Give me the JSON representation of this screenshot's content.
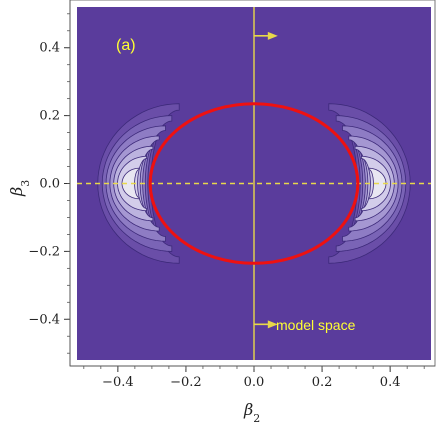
{
  "chart_data": {
    "type": "contour",
    "panel_label": "(a)",
    "annotation": "model space",
    "xlabel": "β2",
    "ylabel": "β3",
    "xlim": [
      -0.52,
      0.52
    ],
    "ylim": [
      -0.52,
      0.52
    ],
    "x_ticks": [
      -0.4,
      -0.2,
      0.0,
      0.2,
      0.4
    ],
    "y_ticks": [
      -0.4,
      -0.2,
      0.0,
      0.2,
      0.4
    ],
    "x_tick_labels": [
      "−0.4",
      "−0.2",
      "0.0",
      "0.2",
      "0.4"
    ],
    "y_tick_labels": [
      "−0.4",
      "−0.2",
      "0.0",
      "0.2",
      "0.4"
    ],
    "background_color": "#5a3c9c",
    "contour_colors": [
      "#6a4ea8",
      "#7a64b6",
      "#8e7cc4",
      "#a597d2",
      "#bcb3df",
      "#d3cdea",
      "#e8e6f1"
    ],
    "contour_line_color": "#3d2a7a",
    "lobes": [
      {
        "center_x": 0.365,
        "center_y": 0.0,
        "side": "right",
        "ring_half_widths_y": [
          0.235,
          0.2,
          0.17,
          0.14,
          0.11,
          0.08,
          0.045
        ]
      },
      {
        "center_x": -0.365,
        "center_y": 0.0,
        "side": "left",
        "ring_half_widths_y": [
          0.235,
          0.2,
          0.17,
          0.14,
          0.11,
          0.08,
          0.045
        ]
      }
    ],
    "boundary_ellipse": {
      "color": "#ee1111",
      "rx": 0.305,
      "ry": 0.235,
      "cx": 0.0,
      "cy": 0.0
    },
    "guide_color": "#e8d84a",
    "vertical_line_x": 0.0,
    "dashed_line_y": 0.0,
    "arrows": [
      {
        "x_start": 0.0,
        "x_end": 0.07,
        "y": 0.435
      },
      {
        "x_start": 0.0,
        "x_end": 0.07,
        "y": -0.415
      }
    ],
    "grid": false
  }
}
